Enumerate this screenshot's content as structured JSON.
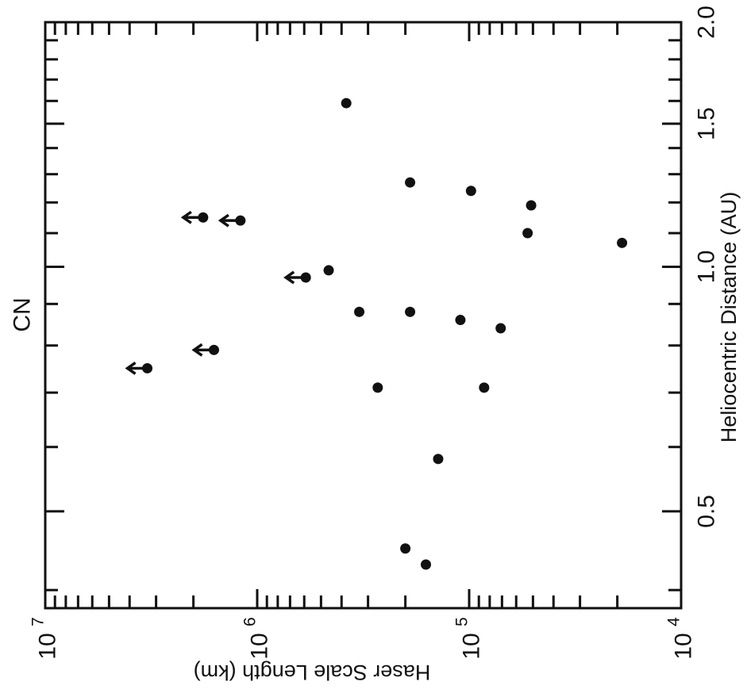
{
  "chart_data": {
    "type": "scatter",
    "title": "CN",
    "xlabel": "Heliocentric Distance (AU)",
    "ylabel": "Haser Scale Length (km)",
    "x_scale": "log",
    "y_scale": "log",
    "xlim": [
      0.38,
      2.0
    ],
    "ylim": [
      10000,
      10000000
    ],
    "x_tick_labels": [
      {
        "value": 0.5,
        "label": "0.5"
      },
      {
        "value": 1.0,
        "label": "1.0"
      },
      {
        "value": 1.5,
        "label": "1.5"
      },
      {
        "value": 2.0,
        "label": "2.0"
      }
    ],
    "y_tick_labels": [
      {
        "value": 10000000,
        "base": "10",
        "exp": "7"
      },
      {
        "value": 1000000,
        "base": "10",
        "exp": "6"
      },
      {
        "value": 100000,
        "base": "10",
        "exp": "5"
      },
      {
        "value": 10000,
        "base": "10",
        "exp": "4"
      }
    ],
    "grid": false,
    "series": [
      {
        "points": [
          {
            "x": 1.59,
            "y": 380000
          },
          {
            "x": 1.27,
            "y": 190000
          },
          {
            "x": 1.24,
            "y": 98000
          },
          {
            "x": 1.19,
            "y": 51000
          },
          {
            "x": 1.1,
            "y": 53000
          },
          {
            "x": 1.07,
            "y": 19000
          },
          {
            "x": 0.99,
            "y": 460000
          },
          {
            "x": 0.88,
            "y": 330000
          },
          {
            "x": 0.88,
            "y": 190000
          },
          {
            "x": 0.86,
            "y": 110000
          },
          {
            "x": 0.84,
            "y": 71000
          },
          {
            "x": 0.71,
            "y": 270000
          },
          {
            "x": 0.71,
            "y": 85000
          },
          {
            "x": 0.58,
            "y": 140000
          },
          {
            "x": 0.45,
            "y": 200000
          },
          {
            "x": 0.43,
            "y": 160000
          }
        ]
      },
      {
        "upper_limit": true,
        "points": [
          {
            "x": 1.15,
            "y": 1800000
          },
          {
            "x": 1.14,
            "y": 1200000
          },
          {
            "x": 0.97,
            "y": 590000
          },
          {
            "x": 0.79,
            "y": 1600000
          },
          {
            "x": 0.75,
            "y": 3300000
          }
        ]
      }
    ]
  }
}
